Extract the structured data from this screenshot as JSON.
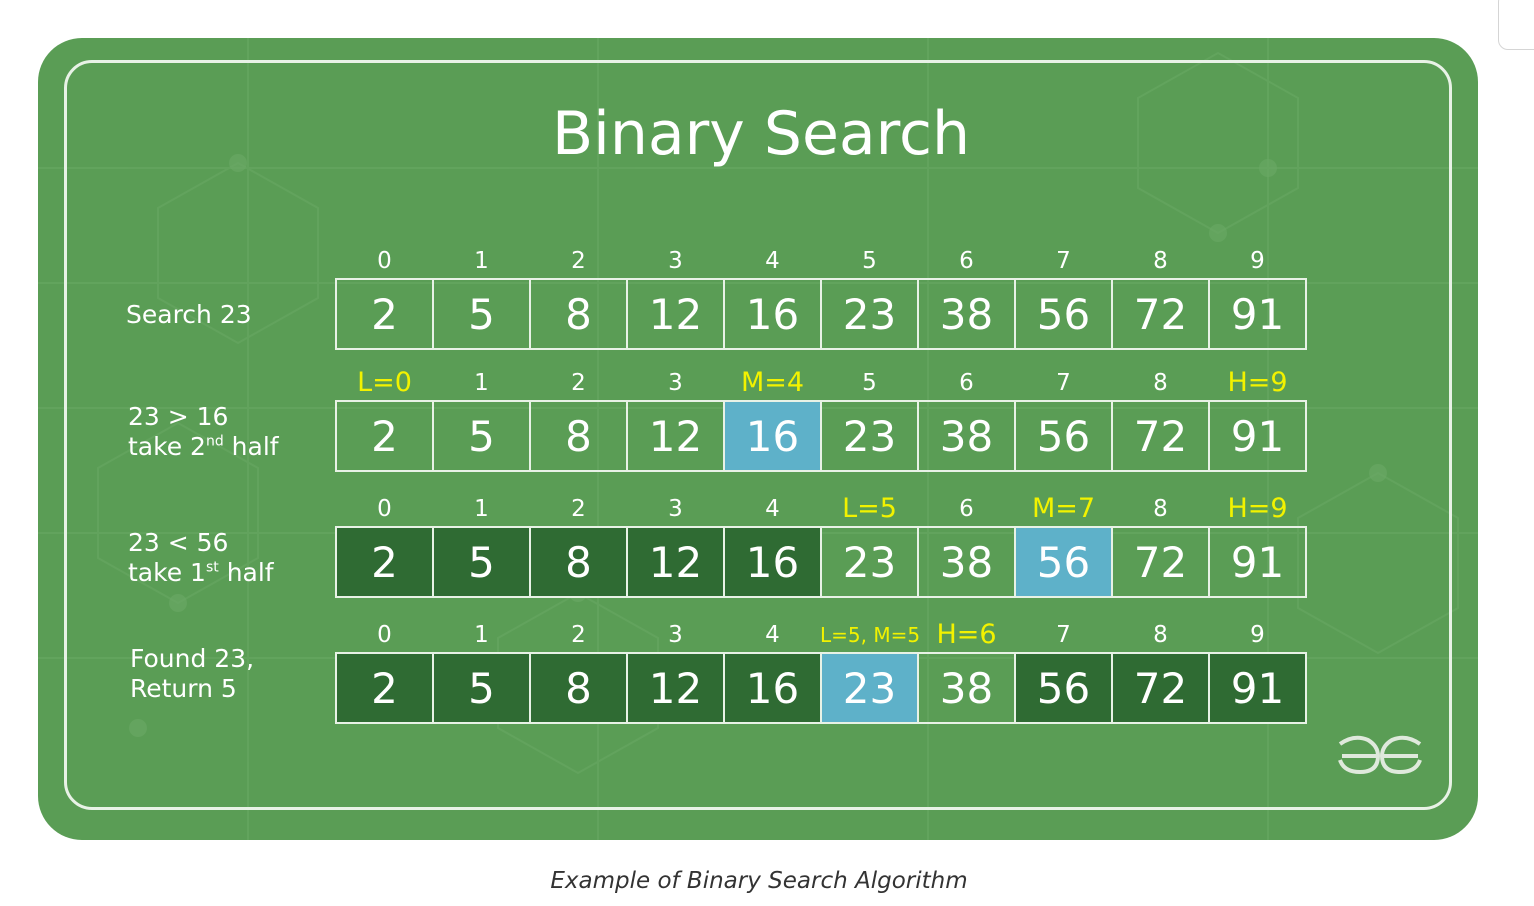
{
  "title": "Binary Search",
  "caption": "Example of Binary Search Algorithm",
  "colors": {
    "card": "#5a9d55",
    "pointer": "#f2f200",
    "highlight": "#5eb1c9",
    "discarded": "#2f6b33"
  },
  "steps": [
    {
      "label_lines": [
        "Search 23"
      ],
      "indices": [
        "0",
        "1",
        "2",
        "3",
        "4",
        "5",
        "6",
        "7",
        "8",
        "9"
      ],
      "pointers": [
        false,
        false,
        false,
        false,
        false,
        false,
        false,
        false,
        false,
        false
      ],
      "values": [
        "2",
        "5",
        "8",
        "12",
        "16",
        "23",
        "38",
        "56",
        "72",
        "91"
      ],
      "states": [
        "light",
        "light",
        "light",
        "light",
        "light",
        "light",
        "light",
        "light",
        "light",
        "light"
      ]
    },
    {
      "label_lines": [
        "23 > 16",
        "take 2",
        "nd",
        " half"
      ],
      "indices": [
        "L=0",
        "1",
        "2",
        "3",
        "M=4",
        "5",
        "6",
        "7",
        "8",
        "H=9"
      ],
      "pointers": [
        true,
        false,
        false,
        false,
        true,
        false,
        false,
        false,
        false,
        true
      ],
      "values": [
        "2",
        "5",
        "8",
        "12",
        "16",
        "23",
        "38",
        "56",
        "72",
        "91"
      ],
      "states": [
        "light",
        "light",
        "light",
        "light",
        "hl",
        "light",
        "light",
        "light",
        "light",
        "light"
      ]
    },
    {
      "label_lines": [
        "23 < 56",
        "take 1",
        "st",
        " half"
      ],
      "indices": [
        "0",
        "1",
        "2",
        "3",
        "4",
        "L=5",
        "6",
        "M=7",
        "8",
        "H=9"
      ],
      "pointers": [
        false,
        false,
        false,
        false,
        false,
        true,
        false,
        true,
        false,
        true
      ],
      "values": [
        "2",
        "5",
        "8",
        "12",
        "16",
        "23",
        "38",
        "56",
        "72",
        "91"
      ],
      "states": [
        "dark",
        "dark",
        "dark",
        "dark",
        "dark",
        "light",
        "light",
        "hl",
        "light",
        "light"
      ]
    },
    {
      "label_lines": [
        "Found 23,",
        "Return 5"
      ],
      "indices": [
        "0",
        "1",
        "2",
        "3",
        "4",
        "L=5, M=5",
        "H=6",
        "7",
        "8",
        "9"
      ],
      "pointers": [
        false,
        false,
        false,
        false,
        false,
        true,
        true,
        false,
        false,
        false
      ],
      "values": [
        "2",
        "5",
        "8",
        "12",
        "16",
        "23",
        "38",
        "56",
        "72",
        "91"
      ],
      "states": [
        "dark",
        "dark",
        "dark",
        "dark",
        "dark",
        "hl",
        "light",
        "dark",
        "dark",
        "dark"
      ]
    }
  ],
  "logo_icon": "geeksforgeeks-logo-icon"
}
